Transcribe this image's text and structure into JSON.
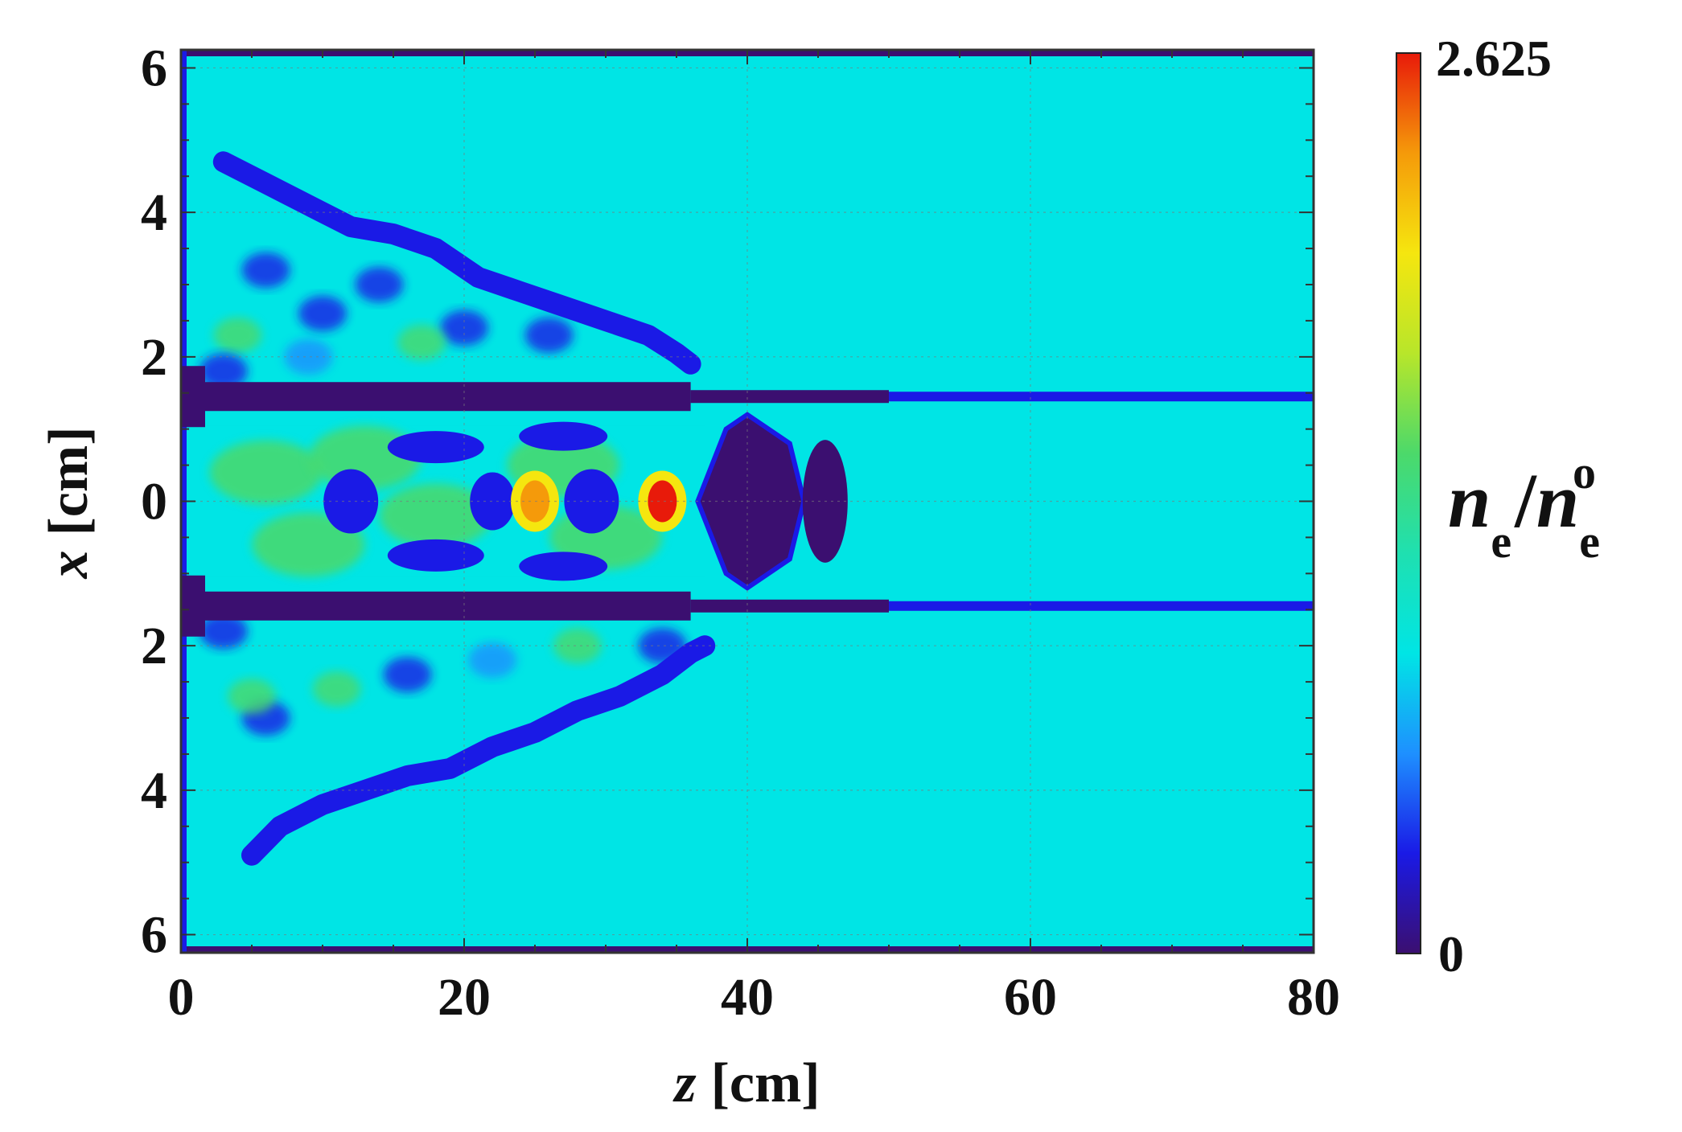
{
  "chart_data": {
    "type": "heatmap",
    "title": "",
    "xlabel": {
      "symbol": "z",
      "unit": "[cm]"
    },
    "ylabel": {
      "symbol": "x",
      "unit": "[cm]"
    },
    "xlim": [
      0,
      80
    ],
    "ylim": [
      -6.25,
      6.25
    ],
    "x_ticks": [
      {
        "value": 0,
        "label": "0"
      },
      {
        "value": 20,
        "label": "20"
      },
      {
        "value": 40,
        "label": "40"
      },
      {
        "value": 60,
        "label": "60"
      },
      {
        "value": 80,
        "label": "80"
      }
    ],
    "y_ticks": [
      {
        "value": 6,
        "label": "6"
      },
      {
        "value": 4,
        "label": "4"
      },
      {
        "value": 2,
        "label": "2"
      },
      {
        "value": 0,
        "label": "0"
      },
      {
        "value": -2,
        "label": "2"
      },
      {
        "value": -4,
        "label": "4"
      },
      {
        "value": -6,
        "label": "6"
      }
    ],
    "grid": true,
    "background_value": 1.0,
    "colorbar": {
      "min_label": "0",
      "max_label": "2.625",
      "min": 0,
      "max": 2.625,
      "quantity": {
        "symbol": "n",
        "sub": "e",
        "sep": "/",
        "symbol2": "n",
        "sub2": "e",
        "sup2": "o"
      },
      "colormap": [
        "#3b0f70",
        "#1a1ae6",
        "#1e90ff",
        "#00e5e5",
        "#1fe0b0",
        "#4cd96a",
        "#b8e62a",
        "#f5e60f",
        "#f59a0a",
        "#e81a0a"
      ]
    },
    "features": [
      {
        "kind": "wall",
        "z": [
          0,
          50
        ],
        "x": 1.45,
        "value": 0.1
      },
      {
        "kind": "wall",
        "z": [
          0,
          50
        ],
        "x": -1.45,
        "value": 0.1
      },
      {
        "kind": "void",
        "z": [
          37,
          47
        ],
        "x": 0,
        "value": 0.0
      },
      {
        "kind": "peak",
        "z": 34,
        "x": 0,
        "value": 2.6
      },
      {
        "kind": "peak",
        "z": 25,
        "x": 0,
        "value": 2.2
      },
      {
        "kind": "shock-front",
        "side": "upper",
        "value": 0.35
      },
      {
        "kind": "shock-front",
        "side": "lower",
        "value": 0.35
      }
    ]
  }
}
